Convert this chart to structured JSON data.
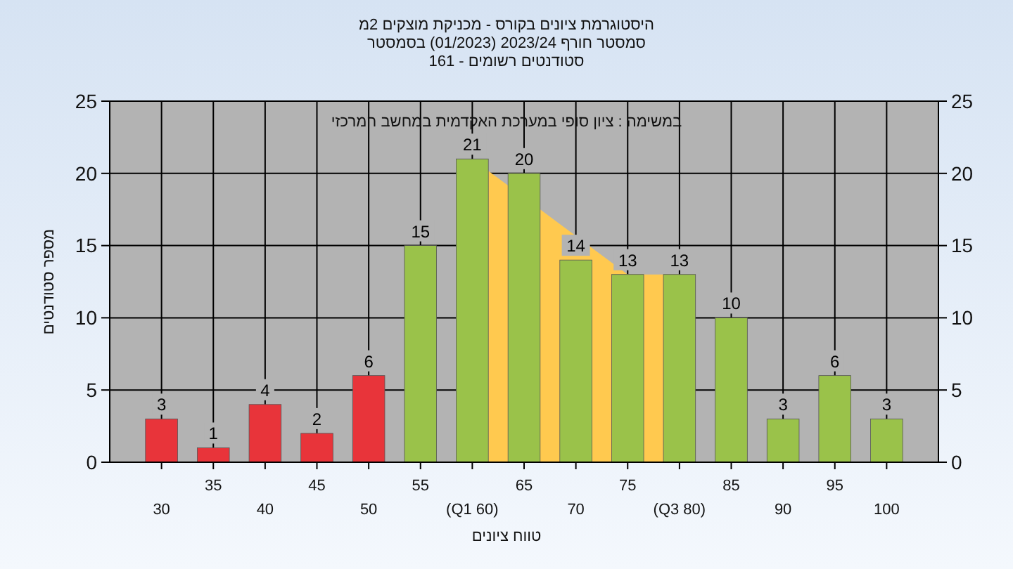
{
  "chart_data": {
    "type": "bar",
    "title": "היסטוגרמת ציונים בקורס - מכניקת מוצקים 2מ",
    "subtitle": "סמסטר חורף 2023/24 (01/2023) בסמסטר\nסטודנטים רשומים - 161",
    "xlabel": "טווח ציונים",
    "ylabel": "מספר סטודנטים",
    "annotations": [
      "במשימה : ציון סופי במערכת האקדמית במחשב המרכזי"
    ],
    "categories": [
      "30",
      "35",
      "40",
      "45",
      "50",
      "55",
      "(Q1 60)",
      "65",
      "70",
      "75",
      "(Q3 80)",
      "85",
      "90",
      "95",
      "100"
    ],
    "series": [
      {
        "type": "area",
        "color": "#ffc94f",
        "x": [
          "(Q1 60)",
          "75",
          "(Q3 80)"
        ],
        "values": [
          21,
          13,
          13
        ]
      },
      {
        "value_labels": [
          "3",
          "1",
          "4",
          "2",
          "6",
          "15",
          "21",
          "20",
          "14",
          "13",
          "13",
          "10",
          "3",
          "6",
          "3"
        ],
        "colors": [
          "#e8343a",
          "#e8343a",
          "#e8343a",
          "#e8343a",
          "#e8343a",
          "#9ac24a",
          "#9ac24a",
          "#9ac24a",
          "#9ac24a",
          "#9ac24a",
          "#9ac24a",
          "#9ac24a",
          "#9ac24a",
          "#9ac24a",
          "#9ac24a"
        ],
        "values": [
          3,
          1,
          4,
          2,
          6,
          15,
          21,
          20,
          14,
          13,
          13,
          10,
          3,
          6,
          3
        ]
      }
    ],
    "ylim": [
      0,
      25
    ],
    "yticks": [
      0,
      5,
      10,
      15,
      20,
      25
    ],
    "y2lim": [
      0,
      25
    ],
    "y2ticks": [
      0,
      5,
      10,
      15,
      20,
      25
    ],
    "grid": true
  }
}
